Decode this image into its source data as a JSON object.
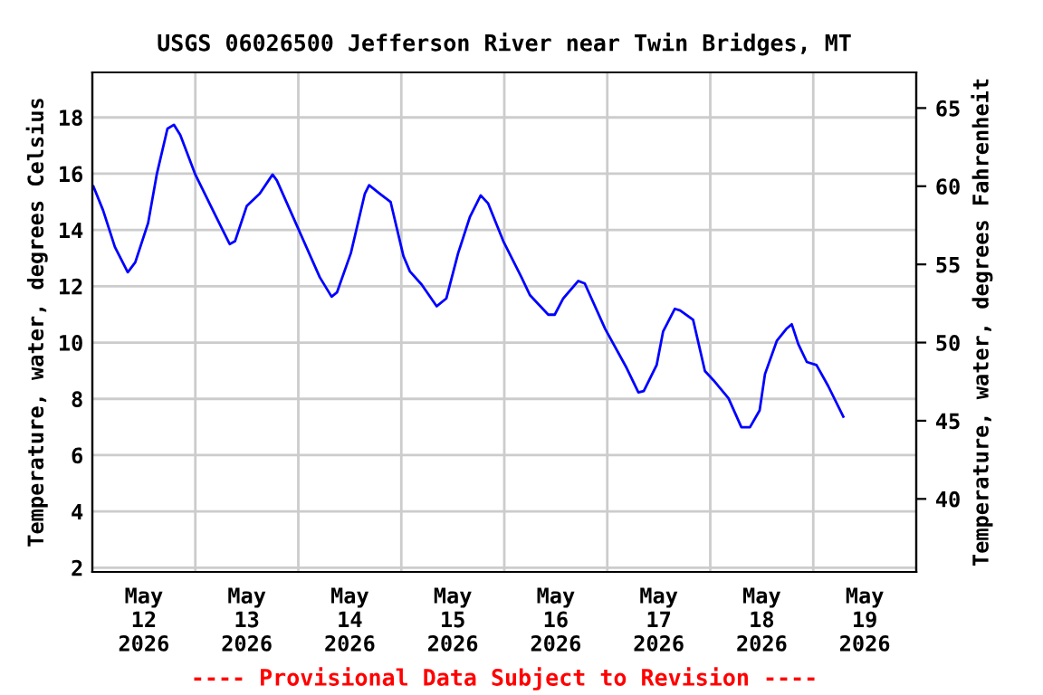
{
  "chart_data": {
    "type": "line",
    "title": "USGS 06026500 Jefferson River near Twin Bridges, MT",
    "ylabel": "Temperature, water, degrees Celsius",
    "y2label": "Temperature, water, degrees Fahrenheit",
    "annotations": [
      "---- Provisional Data Subject to Revision ----"
    ],
    "x": [
      "2026-05-12T00:15",
      "2026-05-12T02:30",
      "2026-05-12T05:15",
      "2026-05-12T08:15",
      "2026-05-12T10:00",
      "2026-05-12T13:00",
      "2026-05-12T15:00",
      "2026-05-12T17:30",
      "2026-05-12T19:00",
      "2026-05-12T20:30",
      "2026-05-13T00:00",
      "2026-05-13T04:15",
      "2026-05-13T08:00",
      "2026-05-13T09:15",
      "2026-05-13T12:00",
      "2026-05-13T15:00",
      "2026-05-13T18:00",
      "2026-05-13T19:00",
      "2026-05-14T00:00",
      "2026-05-14T05:00",
      "2026-05-14T07:45",
      "2026-05-14T09:00",
      "2026-05-14T12:15",
      "2026-05-14T15:30",
      "2026-05-14T16:30",
      "2026-05-14T19:00",
      "2026-05-14T21:30",
      "2026-05-15T00:30",
      "2026-05-15T02:00",
      "2026-05-15T04:45",
      "2026-05-15T08:15",
      "2026-05-15T10:30",
      "2026-05-15T13:15",
      "2026-05-15T16:00",
      "2026-05-15T18:30",
      "2026-05-15T20:15",
      "2026-05-15T23:45",
      "2026-05-16T04:00",
      "2026-05-16T06:00",
      "2026-05-16T10:15",
      "2026-05-16T11:45",
      "2026-05-16T13:45",
      "2026-05-16T17:15",
      "2026-05-16T18:45",
      "2026-05-16T23:30",
      "2026-05-17T04:30",
      "2026-05-17T07:15",
      "2026-05-17T08:30",
      "2026-05-17T11:30",
      "2026-05-17T13:00",
      "2026-05-17T15:45",
      "2026-05-17T17:00",
      "2026-05-17T20:00",
      "2026-05-17T22:45",
      "2026-05-18T00:45",
      "2026-05-18T04:15",
      "2026-05-18T07:15",
      "2026-05-18T09:15",
      "2026-05-18T11:30",
      "2026-05-18T12:45",
      "2026-05-18T15:30",
      "2026-05-18T17:45",
      "2026-05-18T19:00",
      "2026-05-18T20:30",
      "2026-05-18T22:30",
      "2026-05-19T00:45",
      "2026-05-19T03:30",
      "2026-05-19T07:00"
    ],
    "series": [
      {
        "color": "#0000ff",
        "values": [
          15.55,
          14.7,
          13.4,
          12.5,
          12.85,
          14.25,
          15.97,
          17.6,
          17.74,
          17.37,
          15.97,
          14.65,
          13.5,
          13.6,
          14.86,
          15.29,
          15.97,
          15.76,
          14.04,
          12.32,
          11.63,
          11.78,
          13.18,
          15.29,
          15.59,
          15.29,
          15.0,
          13.07,
          12.53,
          12.06,
          11.29,
          11.57,
          13.18,
          14.47,
          15.23,
          14.94,
          13.61,
          12.32,
          11.68,
          10.99,
          10.99,
          11.57,
          12.19,
          12.1,
          10.49,
          9.1,
          8.23,
          8.28,
          9.2,
          10.39,
          11.2,
          11.14,
          10.81,
          8.99,
          8.66,
          8.02,
          6.99,
          6.99,
          7.59,
          8.88,
          10.06,
          10.49,
          10.65,
          9.95,
          9.31,
          9.2,
          8.45,
          7.37
        ]
      }
    ],
    "xlim": [
      "2026-05-12T00:00",
      "2026-05-20T00:00"
    ],
    "xticks": [
      {
        "value": "2026-05-12T12:00",
        "label": "May\n12\n2026"
      },
      {
        "value": "2026-05-13T12:00",
        "label": "May\n13\n2026"
      },
      {
        "value": "2026-05-14T12:00",
        "label": "May\n14\n2026"
      },
      {
        "value": "2026-05-15T12:00",
        "label": "May\n15\n2026"
      },
      {
        "value": "2026-05-16T12:00",
        "label": "May\n16\n2026"
      },
      {
        "value": "2026-05-17T12:00",
        "label": "May\n17\n2026"
      },
      {
        "value": "2026-05-18T12:00",
        "label": "May\n18\n2026"
      },
      {
        "value": "2026-05-19T12:00",
        "label": "May\n19\n2026"
      },
      {
        "value": "2026-05-13T00:00",
        "label": null
      },
      {
        "value": "2026-05-14T00:00",
        "label": null
      },
      {
        "value": "2026-05-15T00:00",
        "label": null
      },
      {
        "value": "2026-05-16T00:00",
        "label": null
      },
      {
        "value": "2026-05-17T00:00",
        "label": null
      },
      {
        "value": "2026-05-18T00:00",
        "label": null
      },
      {
        "value": "2026-05-19T00:00",
        "label": null
      }
    ],
    "ylim": [
      1.85,
      19.6
    ],
    "yticks": [
      2,
      4,
      6,
      8,
      10,
      12,
      14,
      16,
      18
    ],
    "y2lim": [
      35.33,
      67.28
    ],
    "y2ticks": [
      40,
      45,
      50,
      55,
      60,
      65
    ],
    "grid": true,
    "legend": false,
    "line_style": "solid",
    "marker": "none"
  }
}
